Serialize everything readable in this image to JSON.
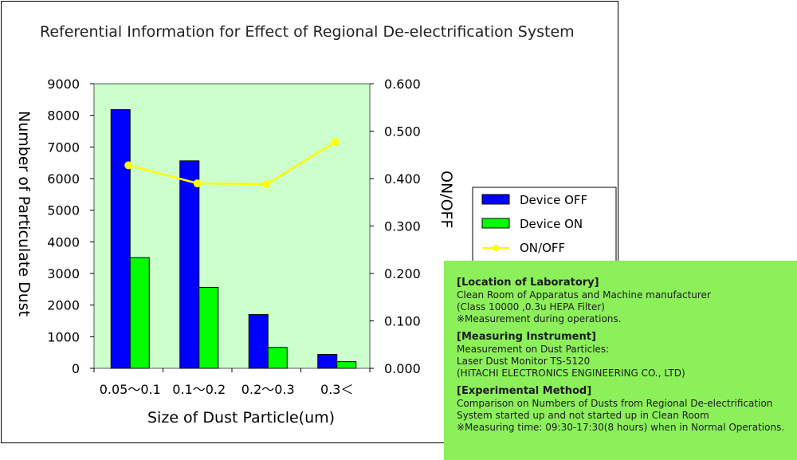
{
  "chart_data": {
    "type": "bar",
    "title": "Referential Information for Effect of Regional De-electrification System",
    "xlabel": "Size of Dust Particle(um)",
    "ylabel": "Number of Particulate Dust",
    "y2label": "ON/OFF",
    "categories": [
      "0.05～0.1",
      "0.1～0.2",
      "0.2～0.3",
      "0.3＜"
    ],
    "ylim": [
      0,
      9000
    ],
    "yticks": [
      "0",
      "1000",
      "2000",
      "3000",
      "4000",
      "5000",
      "6000",
      "7000",
      "8000",
      "9000"
    ],
    "y2lim": [
      0,
      0.6
    ],
    "y2ticks": [
      "0.000",
      "0.100",
      "0.200",
      "0.300",
      "0.400",
      "0.500",
      "0.600"
    ],
    "plot_background": "#ccffcc",
    "legend_position": "right",
    "series": [
      {
        "name": "Device OFF",
        "type": "bar",
        "axis": "left",
        "color": "#0000ff",
        "values": [
          8180,
          6560,
          1700,
          440
        ]
      },
      {
        "name": "Device ON",
        "type": "bar",
        "axis": "left",
        "color": "#00ff00",
        "values": [
          3500,
          2560,
          660,
          210
        ]
      },
      {
        "name": "ON/OFF",
        "type": "line",
        "axis": "right",
        "color": "#ffff00",
        "values": [
          0.428,
          0.39,
          0.388,
          0.477
        ]
      }
    ]
  },
  "info": {
    "sections": [
      {
        "heading": "[Location of Laboratory]",
        "lines": [
          "Clean Room of Apparatus and Machine manufacturer",
          "(Class 10000 ,0.3u HEPA Filter)",
          "※Measurement during operations."
        ]
      },
      {
        "heading": "[Measuring Instrument]",
        "lines": [
          "Measurement on Dust Particles:",
          "Laser Dust Monitor TS-5120",
          "(HITACHI ELECTRONICS ENGINEERING CO., LTD)"
        ]
      },
      {
        "heading": "[Experimental Method]",
        "lines": [
          "Comparison on Numbers of Dusts from Regional De-electrification",
          "System started up and not started up in Clean Room",
          "※Measuring time: 09:30-17:30(8 hours) when in Normal Operations."
        ]
      }
    ]
  }
}
